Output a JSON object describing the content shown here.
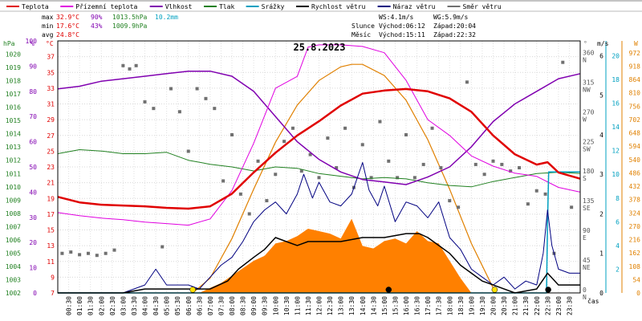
{
  "legend": [
    {
      "label": "Teplota",
      "color": "#e00000"
    },
    {
      "label": "Přízemní teplota",
      "color": "#e000e0"
    },
    {
      "label": "Vlhkost",
      "color": "#8000b0"
    },
    {
      "label": "Tlak",
      "color": "#208020"
    },
    {
      "label": "Srážky",
      "color": "#00a0c0"
    },
    {
      "label": "Rychlost větru",
      "color": "#000000"
    },
    {
      "label": "Náraz větru",
      "color": "#000080"
    },
    {
      "label": "Směr větru",
      "color": "#707070"
    }
  ],
  "stats": {
    "max_label": "max",
    "max_temp": "32.9°C",
    "max_hum": "90%",
    "max_press": "1013.5hPa",
    "max_rain": "10.2mm",
    "min_label": "min",
    "min_temp": "17.6°C",
    "min_hum": "43%",
    "min_press": "1009.9hPa",
    "avg_label": "avg",
    "avg_temp": "24.8°C"
  },
  "wind_info": {
    "ws": "WS:4.1m/s",
    "wg": "WG:5.9m/s"
  },
  "sun": {
    "label": "Slunce",
    "rise": "Východ:06:12",
    "set": "Západ:20:04"
  },
  "moon": {
    "label": "Měsíc",
    "rise": "Východ:15:11",
    "set": "Západ:22:32"
  },
  "date": "25.8.2023",
  "axis_units": {
    "hpa": "hPa",
    "pct": "%",
    "degc": "°C",
    "deg": "°",
    "ms": "m/s",
    "wm2": "W",
    "time": "čas"
  },
  "colors": {
    "temp": "#e00000",
    "ground": "#e000e0",
    "hum": "#8000b0",
    "press": "#208020",
    "rain": "#00a0c0",
    "speed": "#000000",
    "gust": "#000080",
    "dir": "#707070",
    "solar_area": "#ff8000",
    "solar_line": "#e08000"
  },
  "chart_data": {
    "type": "line",
    "x_unit": "hours",
    "xlim": [
      0,
      24
    ],
    "x_tick_labels": [
      "00:30",
      "01:00",
      "01:30",
      "02:00",
      "02:30",
      "03:00",
      "03:30",
      "04:00",
      "04:30",
      "05:00",
      "05:30",
      "06:00",
      "06:30",
      "07:00",
      "07:30",
      "08:00",
      "08:30",
      "09:00",
      "09:30",
      "10:00",
      "10:30",
      "11:00",
      "11:30",
      "12:00",
      "12:30",
      "13:00",
      "13:30",
      "14:00",
      "14:30",
      "15:00",
      "15:30",
      "16:00",
      "16:30",
      "17:00",
      "17:30",
      "18:00",
      "18:30",
      "19:00",
      "19:30",
      "20:00",
      "20:30",
      "21:00",
      "21:30",
      "22:00",
      "22:30",
      "23:00",
      "23:30"
    ],
    "axes": {
      "pressure": {
        "unit": "hPa",
        "ylim": [
          1002,
          1021
        ],
        "ticks": [
          1002,
          1003,
          1004,
          1005,
          1006,
          1007,
          1008,
          1009,
          1010,
          1011,
          1012,
          1013,
          1014,
          1015,
          1016,
          1017,
          1018,
          1019,
          1020
        ]
      },
      "humidity": {
        "unit": "%",
        "ylim": [
          0,
          100
        ],
        "ticks": [
          0,
          10,
          20,
          30,
          40,
          50,
          60,
          70,
          80,
          90,
          100
        ]
      },
      "temperature": {
        "unit": "°C",
        "ylim": [
          7,
          39
        ],
        "ticks": [
          7,
          9,
          11,
          13,
          15,
          17,
          19,
          21,
          23,
          25,
          27,
          29,
          31,
          33,
          35,
          37
        ]
      },
      "direction": {
        "unit": "°",
        "ylim": [
          0,
          382.5
        ],
        "ticks": [
          0,
          45,
          90,
          135,
          180,
          225,
          270,
          315,
          360
        ],
        "tick_labels": [
          "0\nN",
          "45\nNE",
          "90\nE",
          "135\nSE",
          "180\nS",
          "225\nSW",
          "270\nW",
          "315\nNW",
          "360\nN"
        ]
      },
      "wind": {
        "unit": "m/s",
        "ylim": [
          0,
          6.375
        ],
        "ticks": [
          0,
          1,
          2,
          3,
          4,
          5,
          6
        ]
      },
      "rain": {
        "unit": "",
        "ylim": [
          0,
          21.25
        ],
        "ticks": [
          2,
          4,
          6,
          8,
          10,
          12,
          14,
          16,
          18,
          20
        ]
      },
      "solar": {
        "unit": "W",
        "ylim": [
          0,
          1020
        ],
        "ticks": [
          0,
          54,
          108,
          162,
          216,
          270,
          324,
          378,
          432,
          486,
          540,
          594,
          648,
          702,
          756,
          810,
          864,
          918,
          972
        ]
      }
    },
    "series": [
      {
        "name": "Teplota",
        "axis": "temperature",
        "x": [
          0,
          1,
          2,
          3,
          4,
          5,
          6,
          7,
          8,
          9,
          10,
          11,
          12,
          13,
          14,
          15,
          16,
          17,
          18,
          19,
          20,
          21,
          22,
          22.5,
          23,
          24
        ],
        "values": [
          19.2,
          18.5,
          18.2,
          18.1,
          18.0,
          17.8,
          17.7,
          18.0,
          19.6,
          22.3,
          24.8,
          27.0,
          28.8,
          30.8,
          32.3,
          32.7,
          32.9,
          32.6,
          31.7,
          30.0,
          27.0,
          24.6,
          23.3,
          23.6,
          22.3,
          21.5
        ]
      },
      {
        "name": "Přízemní teplota",
        "axis": "temperature",
        "x": [
          0,
          1,
          2,
          3,
          4,
          5,
          6,
          7,
          8,
          9,
          10,
          11,
          11.5,
          12,
          13,
          14,
          15,
          16,
          17,
          18,
          19,
          20,
          21,
          22,
          23,
          24
        ],
        "values": [
          17.2,
          16.8,
          16.5,
          16.3,
          16.0,
          15.8,
          15.6,
          16.4,
          20.0,
          26.0,
          33.0,
          34.5,
          38.2,
          38.5,
          38.5,
          38.3,
          37.5,
          34.0,
          29.0,
          27.0,
          24.4,
          23.1,
          22.2,
          21.8,
          20.4,
          19.8
        ]
      },
      {
        "name": "Vlhkost",
        "axis": "humidity",
        "x": [
          0,
          1,
          2,
          3,
          4,
          5,
          6,
          7,
          8,
          9,
          10,
          11,
          12,
          13,
          14,
          15,
          16,
          17,
          18,
          19,
          20,
          21,
          22,
          23,
          24
        ],
        "values": [
          81,
          82,
          84,
          85,
          86,
          87,
          88,
          88,
          86,
          80,
          70,
          60,
          53,
          48,
          45,
          44,
          43,
          46,
          50,
          58,
          68,
          75,
          80,
          85,
          87
        ]
      },
      {
        "name": "Tlak",
        "axis": "pressure",
        "x": [
          0,
          1,
          2,
          3,
          4,
          5,
          6,
          7,
          8,
          9,
          10,
          11,
          12,
          13,
          14,
          15,
          16,
          17,
          18,
          19,
          20,
          21,
          22,
          23,
          24
        ],
        "values": [
          1012.5,
          1012.8,
          1012.7,
          1012.5,
          1012.5,
          1012.6,
          1012.0,
          1011.7,
          1011.5,
          1011.2,
          1011.5,
          1011.4,
          1011.0,
          1010.8,
          1010.6,
          1010.7,
          1010.6,
          1010.3,
          1010.1,
          1010.0,
          1010.4,
          1010.7,
          1011.0,
          1011.1,
          1011.0
        ]
      },
      {
        "name": "Srážky",
        "axis": "rain",
        "x": [
          0,
          22.45,
          22.5,
          22.55,
          24
        ],
        "values": [
          0,
          0,
          6,
          10.2,
          10.2
        ]
      },
      {
        "name": "Rychlost větru",
        "axis": "wind",
        "x": [
          0,
          3,
          4,
          5,
          6,
          7,
          7.8,
          8.3,
          9,
          9.5,
          10,
          10.5,
          11,
          11.5,
          12,
          13,
          14,
          15,
          16,
          16.6,
          17,
          17.5,
          18,
          18.5,
          19,
          19.5,
          20,
          21,
          22,
          22.5,
          23,
          24
        ],
        "values": [
          0,
          0,
          0.1,
          0.1,
          0.1,
          0.1,
          0.3,
          0.6,
          0.9,
          1.1,
          1.4,
          1.3,
          1.2,
          1.3,
          1.3,
          1.3,
          1.4,
          1.4,
          1.5,
          1.5,
          1.4,
          1.2,
          1.0,
          0.7,
          0.5,
          0.3,
          0.2,
          0.0,
          0.1,
          0.5,
          0.2,
          0.2
        ]
      },
      {
        "name": "Náraz větru",
        "axis": "wind",
        "x": [
          0,
          1,
          2,
          3,
          4,
          4.5,
          5,
          6,
          6.5,
          7,
          7.5,
          8,
          8.5,
          9,
          9.5,
          10,
          10.5,
          11,
          11.3,
          11.7,
          12,
          12.5,
          13,
          13.5,
          14,
          14.3,
          14.7,
          15,
          15.5,
          16,
          16.5,
          17,
          17.5,
          18,
          18.5,
          19,
          19.5,
          20,
          20.5,
          21,
          21.5,
          22,
          22.3,
          22.5,
          22.7,
          23,
          23.5,
          24
        ],
        "values": [
          0,
          0,
          0,
          0,
          0.2,
          0.6,
          0.2,
          0.2,
          0.1,
          0.4,
          0.7,
          0.9,
          1.3,
          1.8,
          2.1,
          2.3,
          2.0,
          2.5,
          3.0,
          2.4,
          2.8,
          2.3,
          2.2,
          2.5,
          3.3,
          2.6,
          2.2,
          2.7,
          1.8,
          2.3,
          2.2,
          1.9,
          2.3,
          1.4,
          1.1,
          0.6,
          0.4,
          0.2,
          0.4,
          0.1,
          0.3,
          0.2,
          1.0,
          2.1,
          1.2,
          0.6,
          0.5,
          0.5
        ]
      },
      {
        "name": "Směr větru",
        "axis": "direction",
        "type": "scatter",
        "x": [
          0.2,
          0.6,
          1.0,
          1.4,
          1.8,
          2.2,
          2.6,
          3.0,
          3.3,
          3.6,
          4.0,
          4.4,
          4.8,
          5.2,
          5.6,
          6.0,
          6.4,
          6.8,
          7.2,
          7.6,
          8.0,
          8.4,
          8.8,
          9.2,
          9.6,
          10.0,
          10.4,
          10.8,
          11.2,
          11.6,
          12.0,
          12.4,
          12.8,
          13.2,
          13.6,
          14.0,
          14.4,
          14.8,
          15.2,
          15.6,
          16.0,
          16.4,
          16.8,
          17.2,
          17.6,
          18.0,
          18.4,
          18.8,
          19.2,
          19.6,
          20.0,
          20.4,
          20.8,
          21.2,
          21.6,
          22.0,
          22.4,
          22.8,
          23.2,
          23.6
        ],
        "values": [
          60,
          62,
          58,
          60,
          57,
          60,
          65,
          345,
          340,
          345,
          290,
          280,
          70,
          310,
          275,
          215,
          310,
          295,
          280,
          170,
          240,
          150,
          120,
          200,
          140,
          180,
          230,
          250,
          185,
          210,
          175,
          235,
          190,
          250,
          160,
          225,
          175,
          260,
          200,
          175,
          240,
          175,
          195,
          250,
          190,
          140,
          130,
          320,
          195,
          180,
          200,
          195,
          185,
          190,
          135,
          155,
          150,
          60,
          350,
          130
        ]
      },
      {
        "name": "Solar",
        "axis": "solar",
        "x": [
          6.2,
          7,
          8,
          9,
          10,
          11,
          12,
          13,
          13.5,
          14,
          15,
          16,
          17,
          18,
          19,
          20,
          20.1
        ],
        "values": [
          0,
          60,
          220,
          420,
          610,
          760,
          860,
          915,
          925,
          925,
          880,
          780,
          620,
          420,
          200,
          20,
          0
        ]
      },
      {
        "name": "Solar measured",
        "axis": "solar",
        "type": "area",
        "x": [
          6.5,
          7,
          7.5,
          8,
          8.5,
          9,
          9.5,
          10,
          10.5,
          11,
          11.5,
          12,
          12.5,
          13,
          13.5,
          14,
          14.5,
          15,
          15.5,
          16,
          16.5,
          17,
          17.5,
          18,
          18.5,
          19
        ],
        "values": [
          0,
          20,
          40,
          70,
          100,
          130,
          150,
          200,
          210,
          230,
          260,
          250,
          240,
          220,
          300,
          190,
          180,
          210,
          220,
          200,
          250,
          210,
          200,
          130,
          60,
          0
        ]
      }
    ],
    "markers": [
      {
        "x": 6.2,
        "label": "sunrise",
        "color": "#ffe000"
      },
      {
        "x": 15.2,
        "label": "moonrise",
        "color": "#000000"
      },
      {
        "x": 20.07,
        "label": "sunset",
        "color": "#ffe000"
      },
      {
        "x": 22.53,
        "label": "moonset",
        "color": "#000000"
      }
    ]
  }
}
